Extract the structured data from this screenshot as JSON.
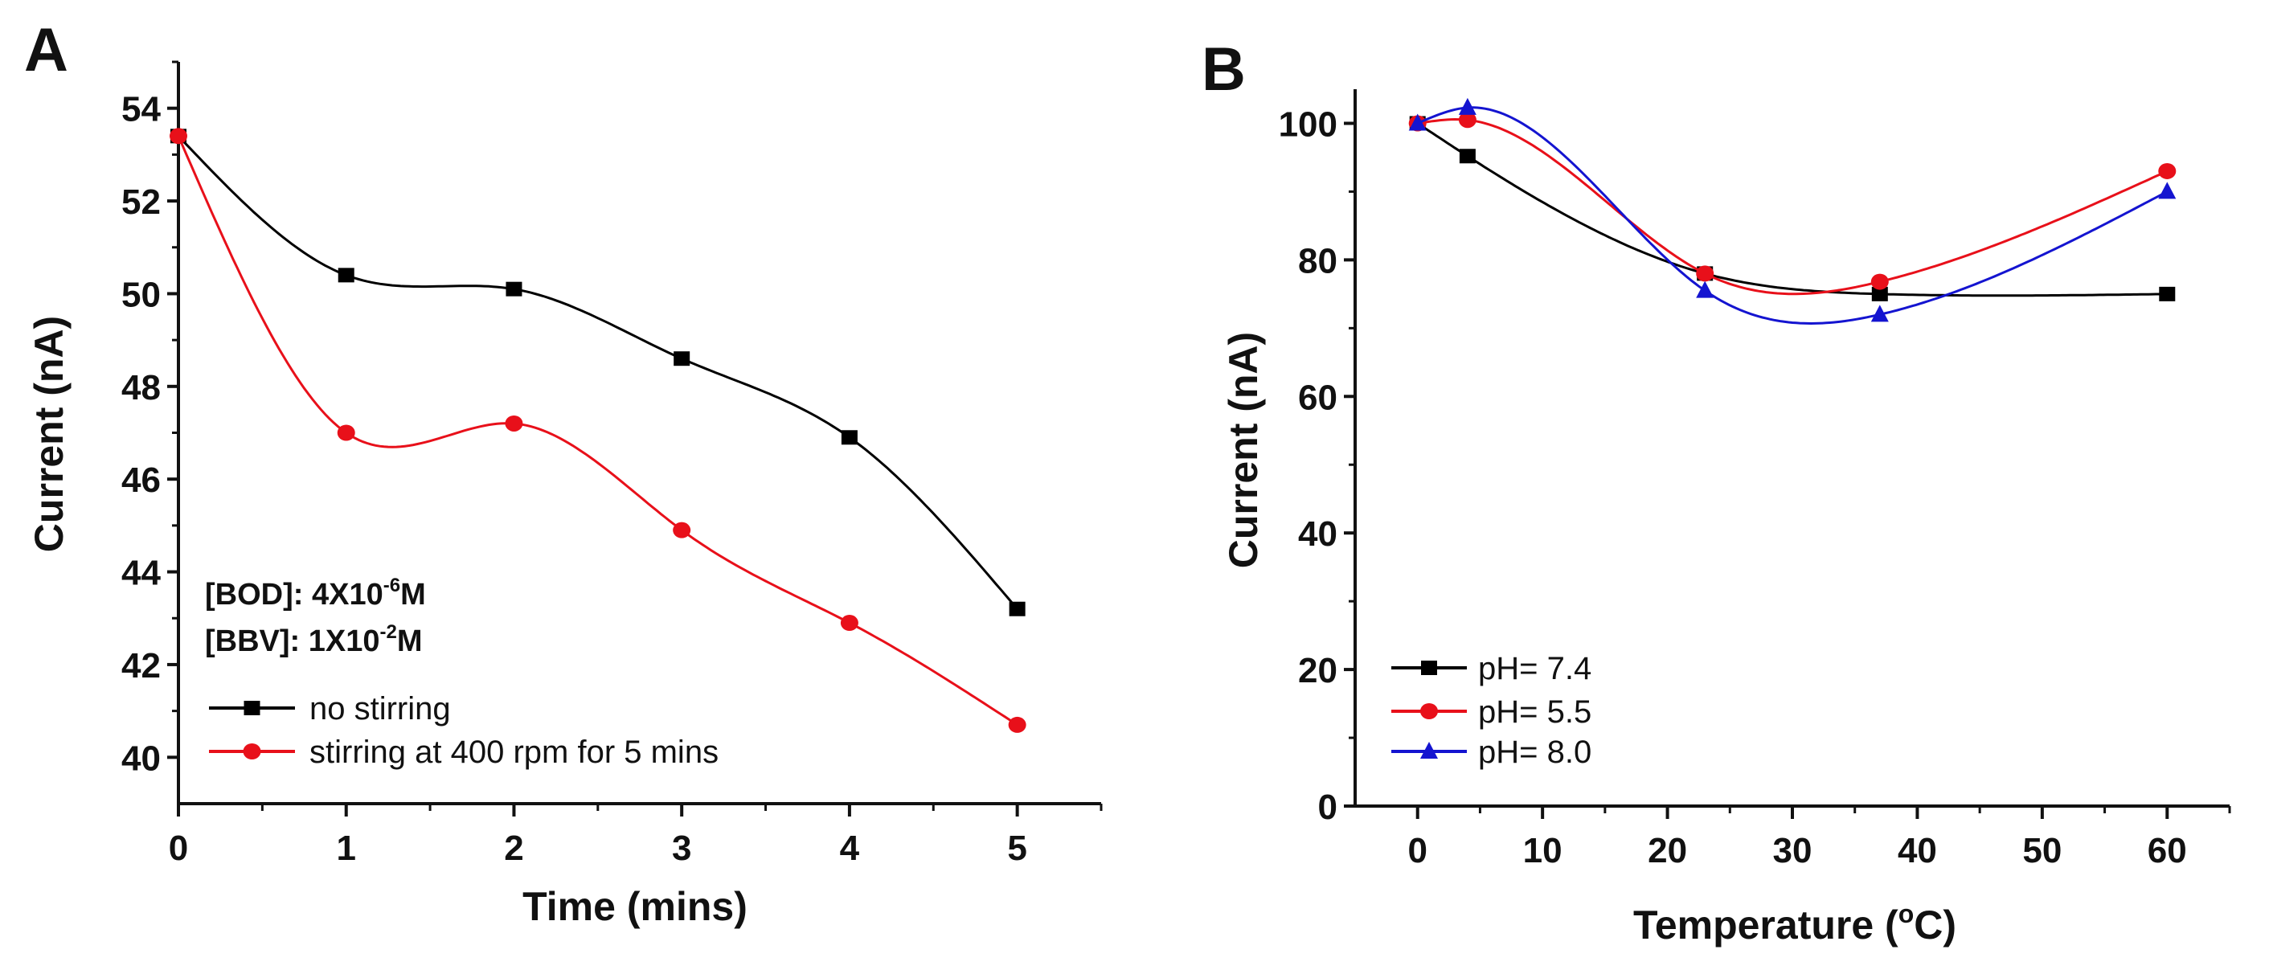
{
  "chart_data": [
    {
      "type": "line",
      "panel_label": "A",
      "title": "",
      "xlabel": "Time (mins)",
      "ylabel": "Current (nA)",
      "xlim": [
        0,
        5.5
      ],
      "ylim": [
        39,
        55
      ],
      "xticks": [
        0,
        1,
        2,
        3,
        4,
        5
      ],
      "xminor": [
        0.5,
        1.5,
        2.5,
        3.5,
        4.5,
        5.5
      ],
      "yticks": [
        40,
        42,
        44,
        46,
        48,
        50,
        52,
        54
      ],
      "yminor": [
        41,
        43,
        45,
        47,
        49,
        51,
        53,
        55
      ],
      "grid": false,
      "legend": "bottom-left",
      "x": [
        0,
        1,
        2,
        3,
        4,
        5
      ],
      "series": [
        {
          "name": "no stirring",
          "color": "#000000",
          "marker": "square",
          "values": [
            53.4,
            50.4,
            50.1,
            48.6,
            46.9,
            43.2
          ]
        },
        {
          "name": "stirring at 400 rpm for 5 mins",
          "color": "#e8101a",
          "marker": "circle",
          "values": [
            53.4,
            47.0,
            47.2,
            44.9,
            42.9,
            40.7
          ]
        }
      ],
      "annotations": [
        {
          "prefix": "[BOD]: 4X10",
          "sup": "-6",
          "suffix": "M"
        },
        {
          "prefix": "[BBV]: 1X10",
          "sup": "-2",
          "suffix": "M"
        }
      ]
    },
    {
      "type": "line",
      "panel_label": "B",
      "title": "",
      "xlabel": "Temperature (",
      "xlabel_sup": "o",
      "xlabel_suffix": "C)",
      "ylabel": "Current (nA)",
      "xlim": [
        -5,
        65
      ],
      "ylim": [
        0,
        105
      ],
      "xticks": [
        0,
        10,
        20,
        30,
        40,
        50,
        60
      ],
      "xminor": [
        5,
        15,
        25,
        35,
        45,
        55,
        65
      ],
      "yticks": [
        0,
        20,
        40,
        60,
        80,
        100
      ],
      "yminor": [
        10,
        30,
        50,
        70,
        90
      ],
      "grid": false,
      "legend": "bottom-left",
      "x": [
        0,
        4,
        23,
        37,
        60
      ],
      "series": [
        {
          "name": "pH= 7.4",
          "color": "#000000",
          "marker": "square",
          "values": [
            100,
            95.2,
            78,
            75,
            75
          ]
        },
        {
          "name": "pH= 5.5",
          "color": "#e8101a",
          "marker": "circle",
          "values": [
            100,
            100.5,
            78,
            76.8,
            93
          ]
        },
        {
          "name": "pH= 8.0",
          "color": "#1414d0",
          "marker": "triangle",
          "values": [
            100,
            102.3,
            75.5,
            72,
            90
          ]
        }
      ]
    }
  ]
}
